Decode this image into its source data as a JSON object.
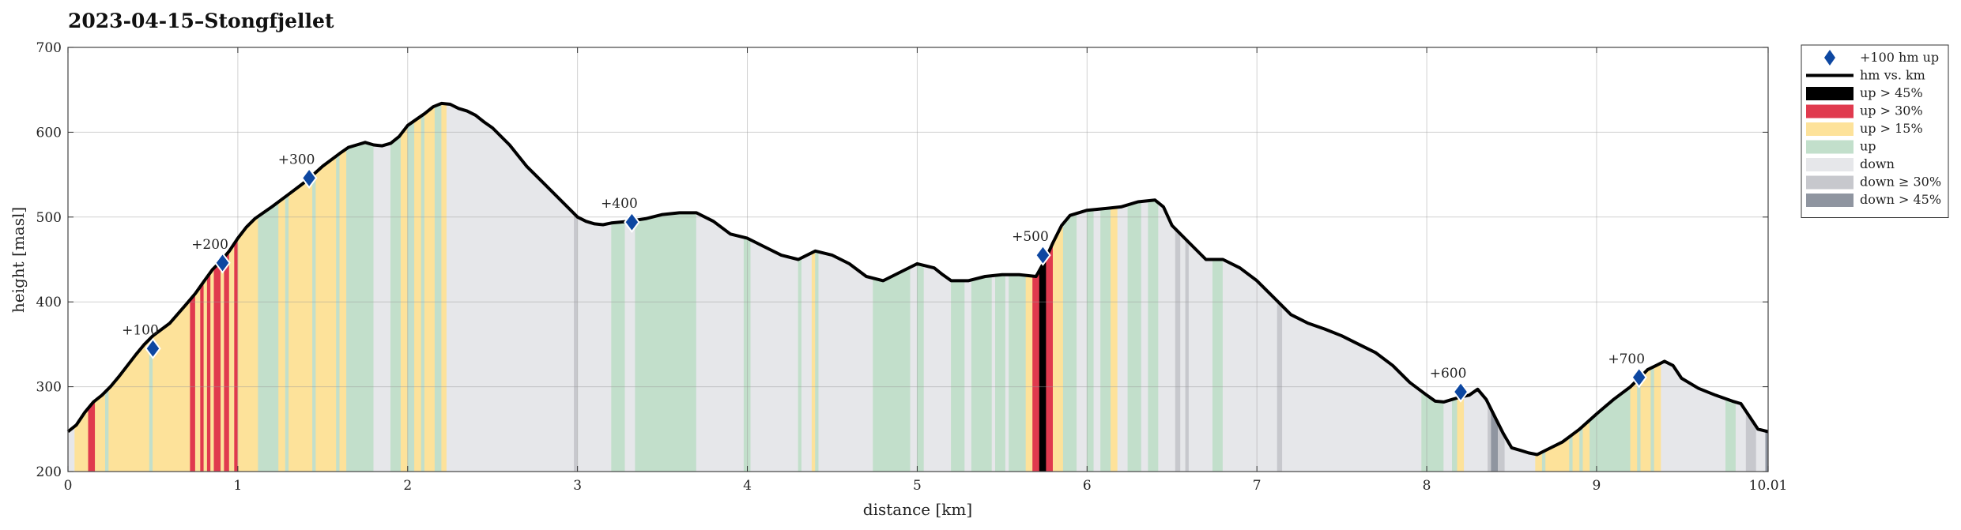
{
  "chart_data": {
    "type": "area",
    "title": "2023-04-15–Stongfjellet",
    "xlabel": "distance [km]",
    "ylabel": "height [masl]",
    "xlim": [
      0,
      10.01
    ],
    "ylim": [
      200,
      700
    ],
    "grid": true,
    "legend_position": "outside right, top",
    "x_ticks": [
      0,
      1,
      2,
      3,
      4,
      5,
      6,
      7,
      8,
      9,
      10.01
    ],
    "x_tick_labels": [
      "0",
      "1",
      "2",
      "3",
      "4",
      "5",
      "6",
      "7",
      "8",
      "9",
      "10.01"
    ],
    "y_ticks": [
      200,
      300,
      400,
      500,
      600,
      700
    ],
    "y_tick_labels": [
      "200",
      "300",
      "400",
      "500",
      "600",
      "700"
    ],
    "profile": {
      "name": "hm vs. km",
      "x": [
        0,
        0.05,
        0.1,
        0.15,
        0.2,
        0.25,
        0.3,
        0.35,
        0.4,
        0.45,
        0.5,
        0.6,
        0.7,
        0.75,
        0.8,
        0.85,
        0.9,
        0.95,
        1.0,
        1.05,
        1.1,
        1.15,
        1.2,
        1.3,
        1.4,
        1.5,
        1.6,
        1.65,
        1.7,
        1.75,
        1.8,
        1.85,
        1.9,
        1.95,
        2.0,
        2.05,
        2.1,
        2.15,
        2.2,
        2.25,
        2.3,
        2.35,
        2.4,
        2.45,
        2.5,
        2.6,
        2.7,
        2.8,
        2.9,
        3.0,
        3.05,
        3.1,
        3.15,
        3.2,
        3.3,
        3.4,
        3.5,
        3.6,
        3.7,
        3.8,
        3.9,
        4.0,
        4.1,
        4.2,
        4.3,
        4.4,
        4.5,
        4.6,
        4.7,
        4.8,
        4.9,
        5.0,
        5.1,
        5.15,
        5.2,
        5.3,
        5.4,
        5.5,
        5.6,
        5.7,
        5.75,
        5.8,
        5.85,
        5.9,
        5.95,
        6.0,
        6.1,
        6.2,
        6.3,
        6.4,
        6.45,
        6.5,
        6.6,
        6.7,
        6.8,
        6.9,
        7.0,
        7.1,
        7.2,
        7.3,
        7.4,
        7.5,
        7.6,
        7.7,
        7.8,
        7.9,
        8.0,
        8.05,
        8.1,
        8.15,
        8.2,
        8.25,
        8.3,
        8.35,
        8.4,
        8.45,
        8.5,
        8.55,
        8.6,
        8.65,
        8.7,
        8.8,
        8.9,
        9.0,
        9.1,
        9.2,
        9.25,
        9.3,
        9.35,
        9.4,
        9.45,
        9.5,
        9.6,
        9.7,
        9.8,
        9.85,
        9.9,
        9.95,
        10.01
      ],
      "y": [
        247,
        255,
        270,
        282,
        290,
        300,
        312,
        325,
        338,
        350,
        360,
        375,
        398,
        410,
        424,
        438,
        448,
        460,
        475,
        488,
        498,
        505,
        512,
        527,
        542,
        560,
        575,
        582,
        585,
        588,
        585,
        584,
        587,
        595,
        608,
        615,
        622,
        630,
        634,
        633,
        628,
        625,
        620,
        612,
        605,
        585,
        560,
        540,
        520,
        500,
        495,
        492,
        491,
        493,
        495,
        498,
        503,
        505,
        505,
        495,
        480,
        475,
        465,
        455,
        450,
        460,
        455,
        445,
        430,
        425,
        435,
        445,
        440,
        432,
        425,
        425,
        430,
        432,
        432,
        430,
        448,
        470,
        490,
        502,
        505,
        508,
        510,
        512,
        518,
        520,
        512,
        490,
        470,
        450,
        450,
        440,
        425,
        405,
        385,
        375,
        368,
        360,
        350,
        340,
        325,
        305,
        290,
        283,
        282,
        285,
        288,
        290,
        297,
        285,
        265,
        245,
        228,
        225,
        222,
        220,
        225,
        235,
        250,
        268,
        285,
        300,
        310,
        320,
        325,
        330,
        325,
        310,
        298,
        290,
        283,
        280,
        265,
        250,
        247
      ]
    },
    "markers": {
      "name": "+100 hm up",
      "x": [
        0.5,
        0.91,
        1.42,
        3.32,
        5.74,
        8.2,
        9.25
      ],
      "y": [
        345,
        446,
        546,
        494,
        455,
        294,
        311
      ],
      "labels": [
        "+100",
        "+200",
        "+300",
        "+400",
        "+500",
        "+600",
        "+700"
      ]
    },
    "legend": [
      {
        "key": "marker",
        "label": "+100 hm up",
        "color": "#0d47a1"
      },
      {
        "key": "line",
        "label": "hm vs. km",
        "color": "#000000"
      },
      {
        "key": "up45",
        "label": "up > 45%",
        "color": "#000000"
      },
      {
        "key": "up30",
        "label": "up > 30%",
        "color": "#e03a4e"
      },
      {
        "key": "up15",
        "label": "up > 15%",
        "color": "#fde29a"
      },
      {
        "key": "up",
        "label": "up",
        "color": "#c2dfcb"
      },
      {
        "key": "down",
        "label": "down",
        "color": "#e6e7ea"
      },
      {
        "key": "down30",
        "label": "down ≥ 30%",
        "color": "#c7c8cd"
      },
      {
        "key": "down45",
        "label": "down > 45%",
        "color": "#8f95a0"
      }
    ],
    "segments": [
      {
        "x0": 0.0,
        "x1": 0.04,
        "cat": "down"
      },
      {
        "x0": 0.04,
        "x1": 0.12,
        "cat": "up15"
      },
      {
        "x0": 0.12,
        "x1": 0.16,
        "cat": "up30"
      },
      {
        "x0": 0.16,
        "x1": 0.22,
        "cat": "up15"
      },
      {
        "x0": 0.22,
        "x1": 0.24,
        "cat": "up"
      },
      {
        "x0": 0.24,
        "x1": 0.48,
        "cat": "up15"
      },
      {
        "x0": 0.48,
        "x1": 0.5,
        "cat": "up"
      },
      {
        "x0": 0.5,
        "x1": 0.72,
        "cat": "up15"
      },
      {
        "x0": 0.72,
        "x1": 0.75,
        "cat": "up30"
      },
      {
        "x0": 0.75,
        "x1": 0.78,
        "cat": "up15"
      },
      {
        "x0": 0.78,
        "x1": 0.8,
        "cat": "up30"
      },
      {
        "x0": 0.8,
        "x1": 0.82,
        "cat": "up15"
      },
      {
        "x0": 0.82,
        "x1": 0.84,
        "cat": "up30"
      },
      {
        "x0": 0.84,
        "x1": 0.86,
        "cat": "up15"
      },
      {
        "x0": 0.86,
        "x1": 0.9,
        "cat": "up30"
      },
      {
        "x0": 0.9,
        "x1": 0.92,
        "cat": "up15"
      },
      {
        "x0": 0.92,
        "x1": 0.95,
        "cat": "up30"
      },
      {
        "x0": 0.95,
        "x1": 0.98,
        "cat": "up15"
      },
      {
        "x0": 0.98,
        "x1": 1.0,
        "cat": "up30"
      },
      {
        "x0": 1.0,
        "x1": 1.12,
        "cat": "up15"
      },
      {
        "x0": 1.12,
        "x1": 1.24,
        "cat": "up"
      },
      {
        "x0": 1.24,
        "x1": 1.28,
        "cat": "up15"
      },
      {
        "x0": 1.28,
        "x1": 1.3,
        "cat": "up"
      },
      {
        "x0": 1.3,
        "x1": 1.44,
        "cat": "up15"
      },
      {
        "x0": 1.44,
        "x1": 1.46,
        "cat": "up"
      },
      {
        "x0": 1.46,
        "x1": 1.58,
        "cat": "up15"
      },
      {
        "x0": 1.58,
        "x1": 1.6,
        "cat": "up"
      },
      {
        "x0": 1.6,
        "x1": 1.64,
        "cat": "up15"
      },
      {
        "x0": 1.64,
        "x1": 1.8,
        "cat": "up"
      },
      {
        "x0": 1.8,
        "x1": 1.9,
        "cat": "down"
      },
      {
        "x0": 1.9,
        "x1": 1.96,
        "cat": "up"
      },
      {
        "x0": 1.96,
        "x1": 2.0,
        "cat": "up15"
      },
      {
        "x0": 2.0,
        "x1": 2.04,
        "cat": "up"
      },
      {
        "x0": 2.04,
        "x1": 2.08,
        "cat": "up15"
      },
      {
        "x0": 2.08,
        "x1": 2.1,
        "cat": "up"
      },
      {
        "x0": 2.1,
        "x1": 2.16,
        "cat": "up15"
      },
      {
        "x0": 2.16,
        "x1": 2.2,
        "cat": "up"
      },
      {
        "x0": 2.2,
        "x1": 2.23,
        "cat": "up15"
      },
      {
        "x0": 2.23,
        "x1": 2.98,
        "cat": "down"
      },
      {
        "x0": 2.98,
        "x1": 3.0,
        "cat": "down30"
      },
      {
        "x0": 3.0,
        "x1": 3.2,
        "cat": "down"
      },
      {
        "x0": 3.2,
        "x1": 3.28,
        "cat": "up"
      },
      {
        "x0": 3.28,
        "x1": 3.34,
        "cat": "down"
      },
      {
        "x0": 3.34,
        "x1": 3.7,
        "cat": "up"
      },
      {
        "x0": 3.7,
        "x1": 3.98,
        "cat": "down"
      },
      {
        "x0": 3.98,
        "x1": 4.02,
        "cat": "up"
      },
      {
        "x0": 4.02,
        "x1": 4.3,
        "cat": "down"
      },
      {
        "x0": 4.3,
        "x1": 4.32,
        "cat": "up"
      },
      {
        "x0": 4.32,
        "x1": 4.38,
        "cat": "down"
      },
      {
        "x0": 4.38,
        "x1": 4.4,
        "cat": "up15"
      },
      {
        "x0": 4.4,
        "x1": 4.42,
        "cat": "up"
      },
      {
        "x0": 4.42,
        "x1": 4.74,
        "cat": "down"
      },
      {
        "x0": 4.74,
        "x1": 4.96,
        "cat": "up"
      },
      {
        "x0": 4.96,
        "x1": 5.0,
        "cat": "down"
      },
      {
        "x0": 5.0,
        "x1": 5.04,
        "cat": "up"
      },
      {
        "x0": 5.04,
        "x1": 5.2,
        "cat": "down"
      },
      {
        "x0": 5.2,
        "x1": 5.28,
        "cat": "up"
      },
      {
        "x0": 5.28,
        "x1": 5.32,
        "cat": "down"
      },
      {
        "x0": 5.32,
        "x1": 5.44,
        "cat": "up"
      },
      {
        "x0": 5.44,
        "x1": 5.46,
        "cat": "down"
      },
      {
        "x0": 5.46,
        "x1": 5.52,
        "cat": "up"
      },
      {
        "x0": 5.52,
        "x1": 5.54,
        "cat": "down"
      },
      {
        "x0": 5.54,
        "x1": 5.58,
        "cat": "up"
      },
      {
        "x0": 5.58,
        "x1": 5.64,
        "cat": "up"
      },
      {
        "x0": 5.64,
        "x1": 5.68,
        "cat": "up15"
      },
      {
        "x0": 5.68,
        "x1": 5.72,
        "cat": "up30"
      },
      {
        "x0": 5.72,
        "x1": 5.76,
        "cat": "up45"
      },
      {
        "x0": 5.76,
        "x1": 5.8,
        "cat": "up30"
      },
      {
        "x0": 5.8,
        "x1": 5.86,
        "cat": "up15"
      },
      {
        "x0": 5.86,
        "x1": 5.94,
        "cat": "up"
      },
      {
        "x0": 5.94,
        "x1": 6.0,
        "cat": "down"
      },
      {
        "x0": 6.0,
        "x1": 6.04,
        "cat": "up"
      },
      {
        "x0": 6.04,
        "x1": 6.08,
        "cat": "down"
      },
      {
        "x0": 6.08,
        "x1": 6.14,
        "cat": "up"
      },
      {
        "x0": 6.14,
        "x1": 6.18,
        "cat": "up15"
      },
      {
        "x0": 6.18,
        "x1": 6.24,
        "cat": "down"
      },
      {
        "x0": 6.24,
        "x1": 6.32,
        "cat": "up"
      },
      {
        "x0": 6.32,
        "x1": 6.36,
        "cat": "down"
      },
      {
        "x0": 6.36,
        "x1": 6.42,
        "cat": "up"
      },
      {
        "x0": 6.42,
        "x1": 6.52,
        "cat": "down"
      },
      {
        "x0": 6.52,
        "x1": 6.55,
        "cat": "down30"
      },
      {
        "x0": 6.55,
        "x1": 6.58,
        "cat": "down"
      },
      {
        "x0": 6.58,
        "x1": 6.6,
        "cat": "down30"
      },
      {
        "x0": 6.6,
        "x1": 6.74,
        "cat": "down"
      },
      {
        "x0": 6.74,
        "x1": 6.8,
        "cat": "up"
      },
      {
        "x0": 6.8,
        "x1": 7.12,
        "cat": "down"
      },
      {
        "x0": 7.12,
        "x1": 7.15,
        "cat": "down30"
      },
      {
        "x0": 7.15,
        "x1": 7.97,
        "cat": "down"
      },
      {
        "x0": 7.97,
        "x1": 8.1,
        "cat": "up"
      },
      {
        "x0": 8.1,
        "x1": 8.15,
        "cat": "down"
      },
      {
        "x0": 8.15,
        "x1": 8.18,
        "cat": "up"
      },
      {
        "x0": 8.18,
        "x1": 8.22,
        "cat": "up15"
      },
      {
        "x0": 8.22,
        "x1": 8.36,
        "cat": "down"
      },
      {
        "x0": 8.36,
        "x1": 8.38,
        "cat": "down30"
      },
      {
        "x0": 8.38,
        "x1": 8.42,
        "cat": "down45"
      },
      {
        "x0": 8.42,
        "x1": 8.46,
        "cat": "down30"
      },
      {
        "x0": 8.46,
        "x1": 8.64,
        "cat": "down"
      },
      {
        "x0": 8.64,
        "x1": 8.68,
        "cat": "up15"
      },
      {
        "x0": 8.68,
        "x1": 8.7,
        "cat": "up"
      },
      {
        "x0": 8.7,
        "x1": 8.84,
        "cat": "up15"
      },
      {
        "x0": 8.84,
        "x1": 8.86,
        "cat": "up"
      },
      {
        "x0": 8.86,
        "x1": 8.9,
        "cat": "up15"
      },
      {
        "x0": 8.9,
        "x1": 8.92,
        "cat": "up"
      },
      {
        "x0": 8.92,
        "x1": 8.96,
        "cat": "up15"
      },
      {
        "x0": 8.96,
        "x1": 9.2,
        "cat": "up"
      },
      {
        "x0": 9.2,
        "x1": 9.24,
        "cat": "up15"
      },
      {
        "x0": 9.24,
        "x1": 9.26,
        "cat": "up"
      },
      {
        "x0": 9.26,
        "x1": 9.32,
        "cat": "up15"
      },
      {
        "x0": 9.32,
        "x1": 9.34,
        "cat": "up"
      },
      {
        "x0": 9.34,
        "x1": 9.38,
        "cat": "up15"
      },
      {
        "x0": 9.38,
        "x1": 9.76,
        "cat": "down"
      },
      {
        "x0": 9.76,
        "x1": 9.82,
        "cat": "up"
      },
      {
        "x0": 9.82,
        "x1": 9.88,
        "cat": "down"
      },
      {
        "x0": 9.88,
        "x1": 9.94,
        "cat": "down30"
      },
      {
        "x0": 9.94,
        "x1": 9.995,
        "cat": "down"
      },
      {
        "x0": 9.995,
        "x1": 10.01,
        "cat": "down45"
      }
    ]
  }
}
